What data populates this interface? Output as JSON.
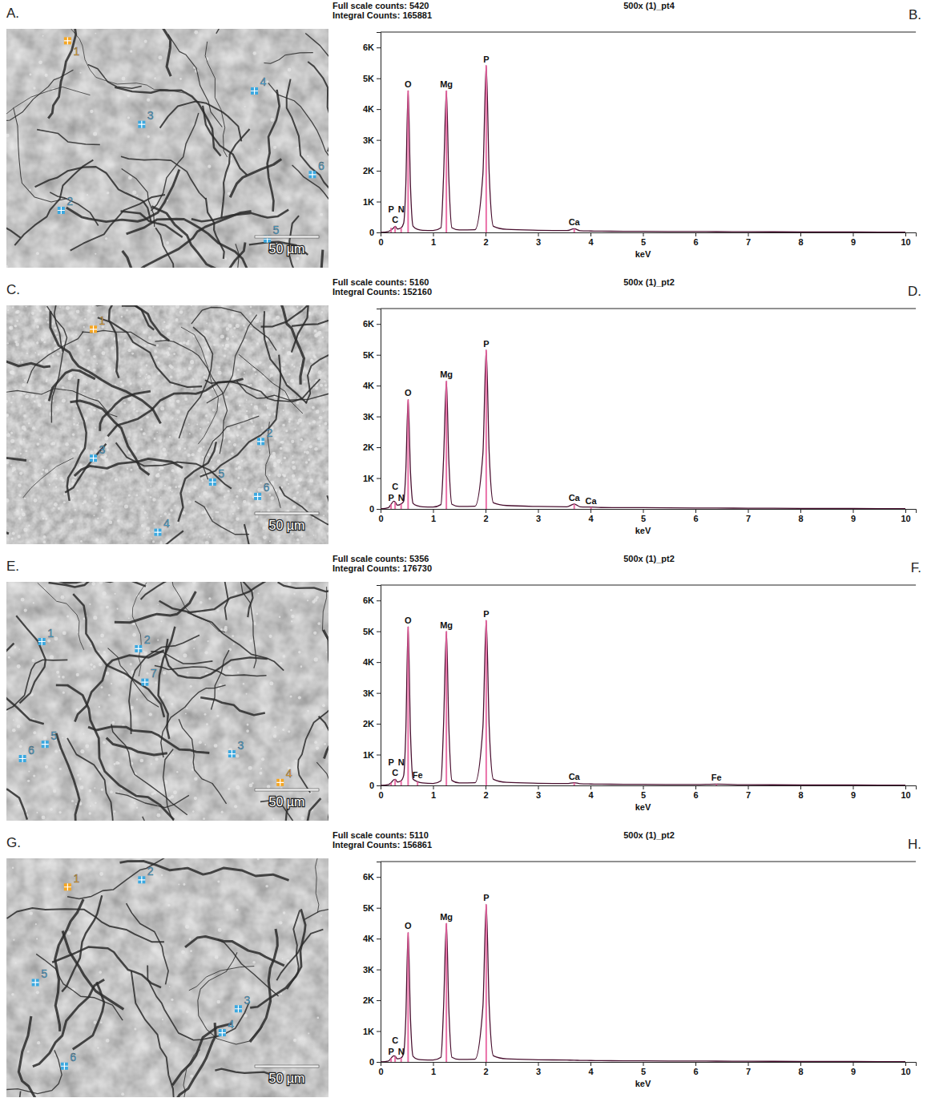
{
  "images": [
    {
      "letter": "A.",
      "scale_bar": "50 µm",
      "markers": [
        {
          "label": "1",
          "color": "#f5a623"
        },
        {
          "label": "4",
          "color": "#3aa8e0"
        },
        {
          "label": "3",
          "color": "#3aa8e0"
        },
        {
          "label": "6",
          "color": "#3aa8e0"
        },
        {
          "label": "2",
          "color": "#3aa8e0"
        },
        {
          "label": "5",
          "color": "#3aa8e0"
        }
      ]
    },
    {
      "letter": "C.",
      "scale_bar": "50 µm",
      "markers": [
        {
          "label": "1",
          "color": "#f5a623"
        },
        {
          "label": "3",
          "color": "#3aa8e0"
        },
        {
          "label": "2",
          "color": "#3aa8e0"
        },
        {
          "label": "5",
          "color": "#3aa8e0"
        },
        {
          "label": "6",
          "color": "#3aa8e0"
        },
        {
          "label": "4",
          "color": "#3aa8e0"
        }
      ]
    },
    {
      "letter": "E.",
      "scale_bar": "50 µm",
      "markers": [
        {
          "label": "1",
          "color": "#3aa8e0"
        },
        {
          "label": "2",
          "color": "#3aa8e0"
        },
        {
          "label": "7",
          "color": "#3aa8e0"
        },
        {
          "label": "5",
          "color": "#3aa8e0"
        },
        {
          "label": "6",
          "color": "#3aa8e0"
        },
        {
          "label": "3",
          "color": "#3aa8e0"
        },
        {
          "label": "4",
          "color": "#f5a623"
        }
      ]
    },
    {
      "letter": "G.",
      "scale_bar": "50 µm",
      "markers": [
        {
          "label": "1",
          "color": "#f5a623"
        },
        {
          "label": "2",
          "color": "#3aa8e0"
        },
        {
          "label": "5",
          "color": "#3aa8e0"
        },
        {
          "label": "3",
          "color": "#3aa8e0"
        },
        {
          "label": "4",
          "color": "#3aa8e0"
        },
        {
          "label": "6",
          "color": "#3aa8e0"
        }
      ]
    }
  ],
  "chart_data": [
    {
      "type": "line",
      "letter": "B.",
      "title": "500x (1)_pt4",
      "header": [
        "Full scale counts: 5420",
        "Integral Counts: 165881"
      ],
      "x_label": "keV",
      "xlim": [
        0,
        10.2
      ],
      "xticks": [
        0,
        1,
        2,
        3,
        4,
        5,
        6,
        7,
        8,
        9,
        10
      ],
      "ylim": [
        0,
        6500
      ],
      "yticks": [
        0,
        {
          "value": 1000,
          "label": "1K"
        },
        {
          "value": 2000,
          "label": "2K"
        },
        {
          "value": 3000,
          "label": "3K"
        },
        {
          "value": 4000,
          "label": "4K"
        },
        {
          "value": 5000,
          "label": "5K"
        },
        {
          "value": 6000,
          "label": "6K"
        }
      ],
      "series": [
        {
          "type": "line",
          "color": "#4a1030",
          "x": [
            0,
            0.15,
            0.2,
            0.25,
            0.28,
            0.32,
            0.39,
            0.44,
            0.48,
            0.525,
            0.57,
            0.62,
            0.705,
            0.8,
            1.0,
            1.15,
            1.2,
            1.254,
            1.3,
            1.36,
            1.5,
            1.8,
            1.95,
            2.013,
            2.07,
            2.15,
            2.4,
            3.0,
            3.55,
            3.69,
            3.8,
            4.01,
            4.2,
            5,
            6,
            6.4,
            7,
            8,
            9,
            10
          ],
          "values": [
            0,
            30,
            80,
            150,
            200,
            110,
            150,
            300,
            1500,
            4600,
            1500,
            200,
            100,
            70,
            60,
            150,
            1800,
            4600,
            1800,
            150,
            80,
            90,
            1900,
            5420,
            1900,
            200,
            100,
            70,
            60,
            120,
            55,
            45,
            40,
            35,
            28,
            26,
            22,
            18,
            14,
            10
          ]
        },
        {
          "type": "bar",
          "color": "#e8609e",
          "labels": [
            "C",
            "P",
            "N",
            "O",
            "Mg",
            "P",
            "Ca"
          ],
          "x": [
            0.277,
            0.2,
            0.392,
            0.525,
            1.254,
            2.013,
            3.69
          ],
          "values": [
            200,
            150,
            150,
            4600,
            4600,
            5420,
            120
          ]
        }
      ]
    },
    {
      "type": "line",
      "letter": "D.",
      "title": "500x (1)_pt2",
      "header": [
        "Full scale counts: 5160",
        "Integral Counts: 152160"
      ],
      "x_label": "keV",
      "xlim": [
        0,
        10.2
      ],
      "xticks": [
        0,
        1,
        2,
        3,
        4,
        5,
        6,
        7,
        8,
        9,
        10
      ],
      "ylim": [
        0,
        6500
      ],
      "yticks": [
        0,
        {
          "value": 1000,
          "label": "1K"
        },
        {
          "value": 2000,
          "label": "2K"
        },
        {
          "value": 3000,
          "label": "3K"
        },
        {
          "value": 4000,
          "label": "4K"
        },
        {
          "value": 5000,
          "label": "5K"
        },
        {
          "value": 6000,
          "label": "6K"
        }
      ],
      "series": [
        {
          "type": "line",
          "color": "#4a1030",
          "x": [
            0,
            0.15,
            0.2,
            0.25,
            0.28,
            0.32,
            0.39,
            0.44,
            0.48,
            0.525,
            0.57,
            0.62,
            0.705,
            0.8,
            1.0,
            1.15,
            1.2,
            1.254,
            1.3,
            1.36,
            1.5,
            1.8,
            1.95,
            2.013,
            2.07,
            2.15,
            2.4,
            3.0,
            3.55,
            3.69,
            3.8,
            4.01,
            4.2,
            5,
            6,
            6.4,
            7,
            8,
            9,
            10
          ],
          "values": [
            0,
            40,
            150,
            250,
            220,
            120,
            160,
            250,
            1200,
            3550,
            1200,
            180,
            100,
            70,
            60,
            140,
            1600,
            4150,
            1600,
            150,
            80,
            90,
            1800,
            5160,
            1800,
            200,
            110,
            80,
            70,
            160,
            70,
            60,
            45,
            40,
            30,
            28,
            24,
            18,
            14,
            10
          ]
        },
        {
          "type": "bar",
          "color": "#e8609e",
          "labels": [
            "P",
            "C",
            "N",
            "O",
            "Mg",
            "P",
            "Ca",
            "Ca"
          ],
          "x": [
            0.2,
            0.277,
            0.392,
            0.525,
            1.254,
            2.013,
            3.69,
            4.01
          ],
          "values": [
            150,
            220,
            160,
            3550,
            4150,
            5160,
            160,
            60
          ]
        }
      ]
    },
    {
      "type": "line",
      "letter": "F.",
      "title": "500x (1)_pt2",
      "header": [
        "Full scale counts: 5356",
        "Integral Counts: 176730"
      ],
      "x_label": "keV",
      "xlim": [
        0,
        10.2
      ],
      "xticks": [
        0,
        1,
        2,
        3,
        4,
        5,
        6,
        7,
        8,
        9,
        10
      ],
      "ylim": [
        0,
        6500
      ],
      "yticks": [
        0,
        {
          "value": 1000,
          "label": "1K"
        },
        {
          "value": 2000,
          "label": "2K"
        },
        {
          "value": 3000,
          "label": "3K"
        },
        {
          "value": 4000,
          "label": "4K"
        },
        {
          "value": 5000,
          "label": "5K"
        },
        {
          "value": 6000,
          "label": "6K"
        }
      ],
      "series": [
        {
          "type": "line",
          "color": "#4a1030",
          "x": [
            0,
            0.15,
            0.2,
            0.25,
            0.28,
            0.32,
            0.39,
            0.44,
            0.48,
            0.525,
            0.57,
            0.62,
            0.705,
            0.8,
            1.0,
            1.15,
            1.2,
            1.254,
            1.3,
            1.36,
            1.5,
            1.8,
            1.95,
            2.013,
            2.07,
            2.15,
            2.4,
            3.0,
            3.55,
            3.69,
            3.8,
            4.01,
            4.2,
            5,
            6,
            6.4,
            7,
            8,
            9,
            10
          ],
          "values": [
            0,
            30,
            90,
            180,
            200,
            110,
            150,
            320,
            1700,
            5150,
            1700,
            200,
            120,
            80,
            60,
            150,
            1950,
            5000,
            1950,
            160,
            80,
            90,
            1900,
            5356,
            1900,
            200,
            100,
            70,
            60,
            90,
            55,
            45,
            40,
            35,
            28,
            40,
            22,
            18,
            14,
            10
          ]
        },
        {
          "type": "bar",
          "color": "#e8609e",
          "labels": [
            "C",
            "P",
            "N",
            "Fe",
            "O",
            "Mg",
            "P",
            "Ca",
            "Fe"
          ],
          "x": [
            0.277,
            0.2,
            0.392,
            0.705,
            0.525,
            1.254,
            2.013,
            3.69,
            6.4
          ],
          "values": [
            200,
            90,
            150,
            120,
            5150,
            5000,
            5356,
            90,
            40
          ]
        }
      ]
    },
    {
      "type": "line",
      "letter": "H.",
      "title": "500x (1)_pt2",
      "header": [
        "Full scale counts: 5110",
        "Integral Counts: 156861"
      ],
      "x_label": "keV",
      "xlim": [
        0,
        10.2
      ],
      "xticks": [
        0,
        1,
        2,
        3,
        4,
        5,
        6,
        7,
        8,
        9,
        10
      ],
      "ylim": [
        0,
        6500
      ],
      "yticks": [
        0,
        {
          "value": 1000,
          "label": "1K"
        },
        {
          "value": 2000,
          "label": "2K"
        },
        {
          "value": 3000,
          "label": "3K"
        },
        {
          "value": 4000,
          "label": "4K"
        },
        {
          "value": 5000,
          "label": "5K"
        },
        {
          "value": 6000,
          "label": "6K"
        }
      ],
      "series": [
        {
          "type": "line",
          "color": "#4a1030",
          "x": [
            0,
            0.15,
            0.2,
            0.25,
            0.28,
            0.32,
            0.39,
            0.44,
            0.48,
            0.525,
            0.57,
            0.62,
            0.705,
            0.8,
            1.0,
            1.15,
            1.2,
            1.254,
            1.3,
            1.36,
            1.5,
            1.8,
            1.95,
            2.013,
            2.07,
            2.15,
            2.4,
            3.0,
            3.55,
            3.69,
            3.8,
            4.01,
            4.2,
            5,
            6,
            6.4,
            7,
            8,
            9,
            10
          ],
          "values": [
            0,
            30,
            120,
            200,
            180,
            100,
            130,
            280,
            1400,
            4200,
            1400,
            180,
            90,
            70,
            60,
            150,
            1750,
            4500,
            1750,
            150,
            80,
            90,
            1800,
            5110,
            1800,
            200,
            100,
            70,
            60,
            55,
            50,
            45,
            40,
            35,
            28,
            26,
            22,
            18,
            14,
            10
          ]
        },
        {
          "type": "bar",
          "color": "#e8609e",
          "labels": [
            "P",
            "C",
            "N",
            "O",
            "Mg",
            "P"
          ],
          "x": [
            0.2,
            0.277,
            0.392,
            0.525,
            1.254,
            2.013
          ],
          "values": [
            120,
            180,
            130,
            4200,
            4500,
            5110
          ]
        }
      ]
    }
  ]
}
